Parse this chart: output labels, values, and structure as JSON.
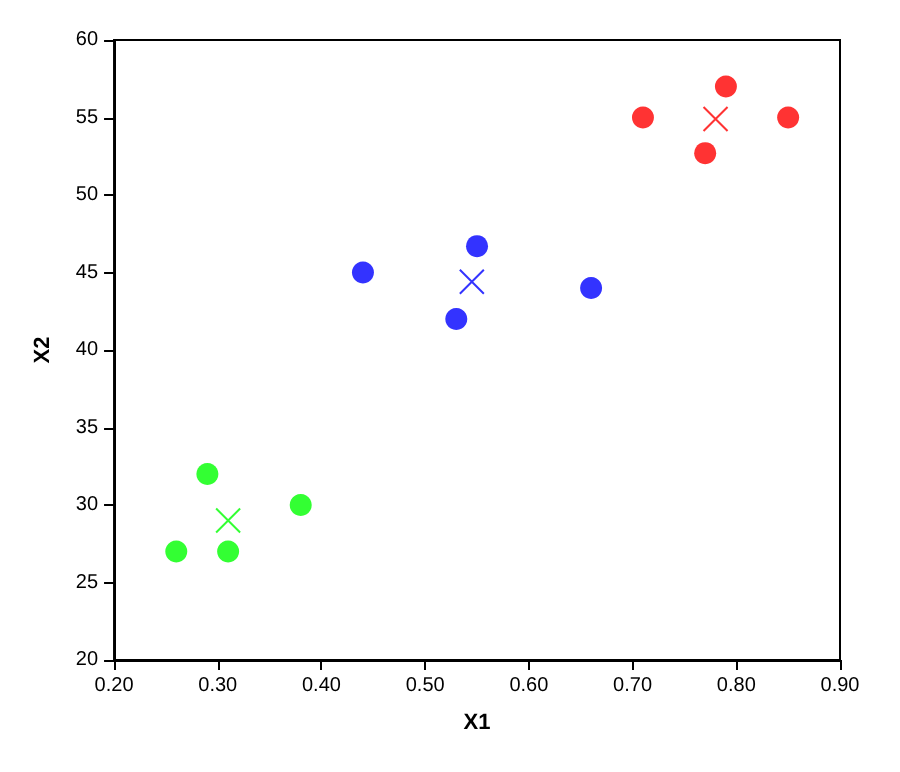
{
  "chart_data": {
    "type": "scatter",
    "xlabel": "X1",
    "ylabel": "X2",
    "xlim": [
      0.2,
      0.9
    ],
    "xticks": [
      {
        "value": 0.2,
        "label": "0.20"
      },
      {
        "value": 0.3,
        "label": "0.30"
      },
      {
        "value": 0.4,
        "label": "0.40"
      },
      {
        "value": 0.5,
        "label": "0.50"
      },
      {
        "value": 0.6,
        "label": "0.60"
      },
      {
        "value": 0.7,
        "label": "0.70"
      },
      {
        "value": 0.8,
        "label": "0.80"
      },
      {
        "value": 0.9,
        "label": "0.90"
      }
    ],
    "ylim": [
      20,
      60
    ],
    "yticks": [
      20,
      25,
      30,
      35,
      40,
      45,
      50,
      55,
      60
    ],
    "grid": false,
    "series": [
      {
        "color": "#00ff00",
        "marker": "circle",
        "x": [
          0.26,
          0.29,
          0.31,
          0.38
        ],
        "values": [
          27,
          32,
          27,
          30
        ]
      },
      {
        "color": "#0000ff",
        "marker": "circle",
        "x": [
          0.44,
          0.55,
          0.53,
          0.66
        ],
        "values": [
          45,
          46.7,
          42,
          44
        ]
      },
      {
        "color": "#ff0000",
        "marker": "circle",
        "x": [
          0.71,
          0.79,
          0.77,
          0.85
        ],
        "values": [
          55,
          57,
          52.7,
          55
        ]
      },
      {
        "color": "#00ff00",
        "marker": "cross",
        "x": [
          0.31
        ],
        "values": [
          29
        ]
      },
      {
        "color": "#0000ff",
        "marker": "cross",
        "x": [
          0.545
        ],
        "values": [
          44.4
        ]
      },
      {
        "color": "#ff0000",
        "marker": "cross",
        "x": [
          0.78
        ],
        "values": [
          54.9
        ]
      }
    ]
  }
}
